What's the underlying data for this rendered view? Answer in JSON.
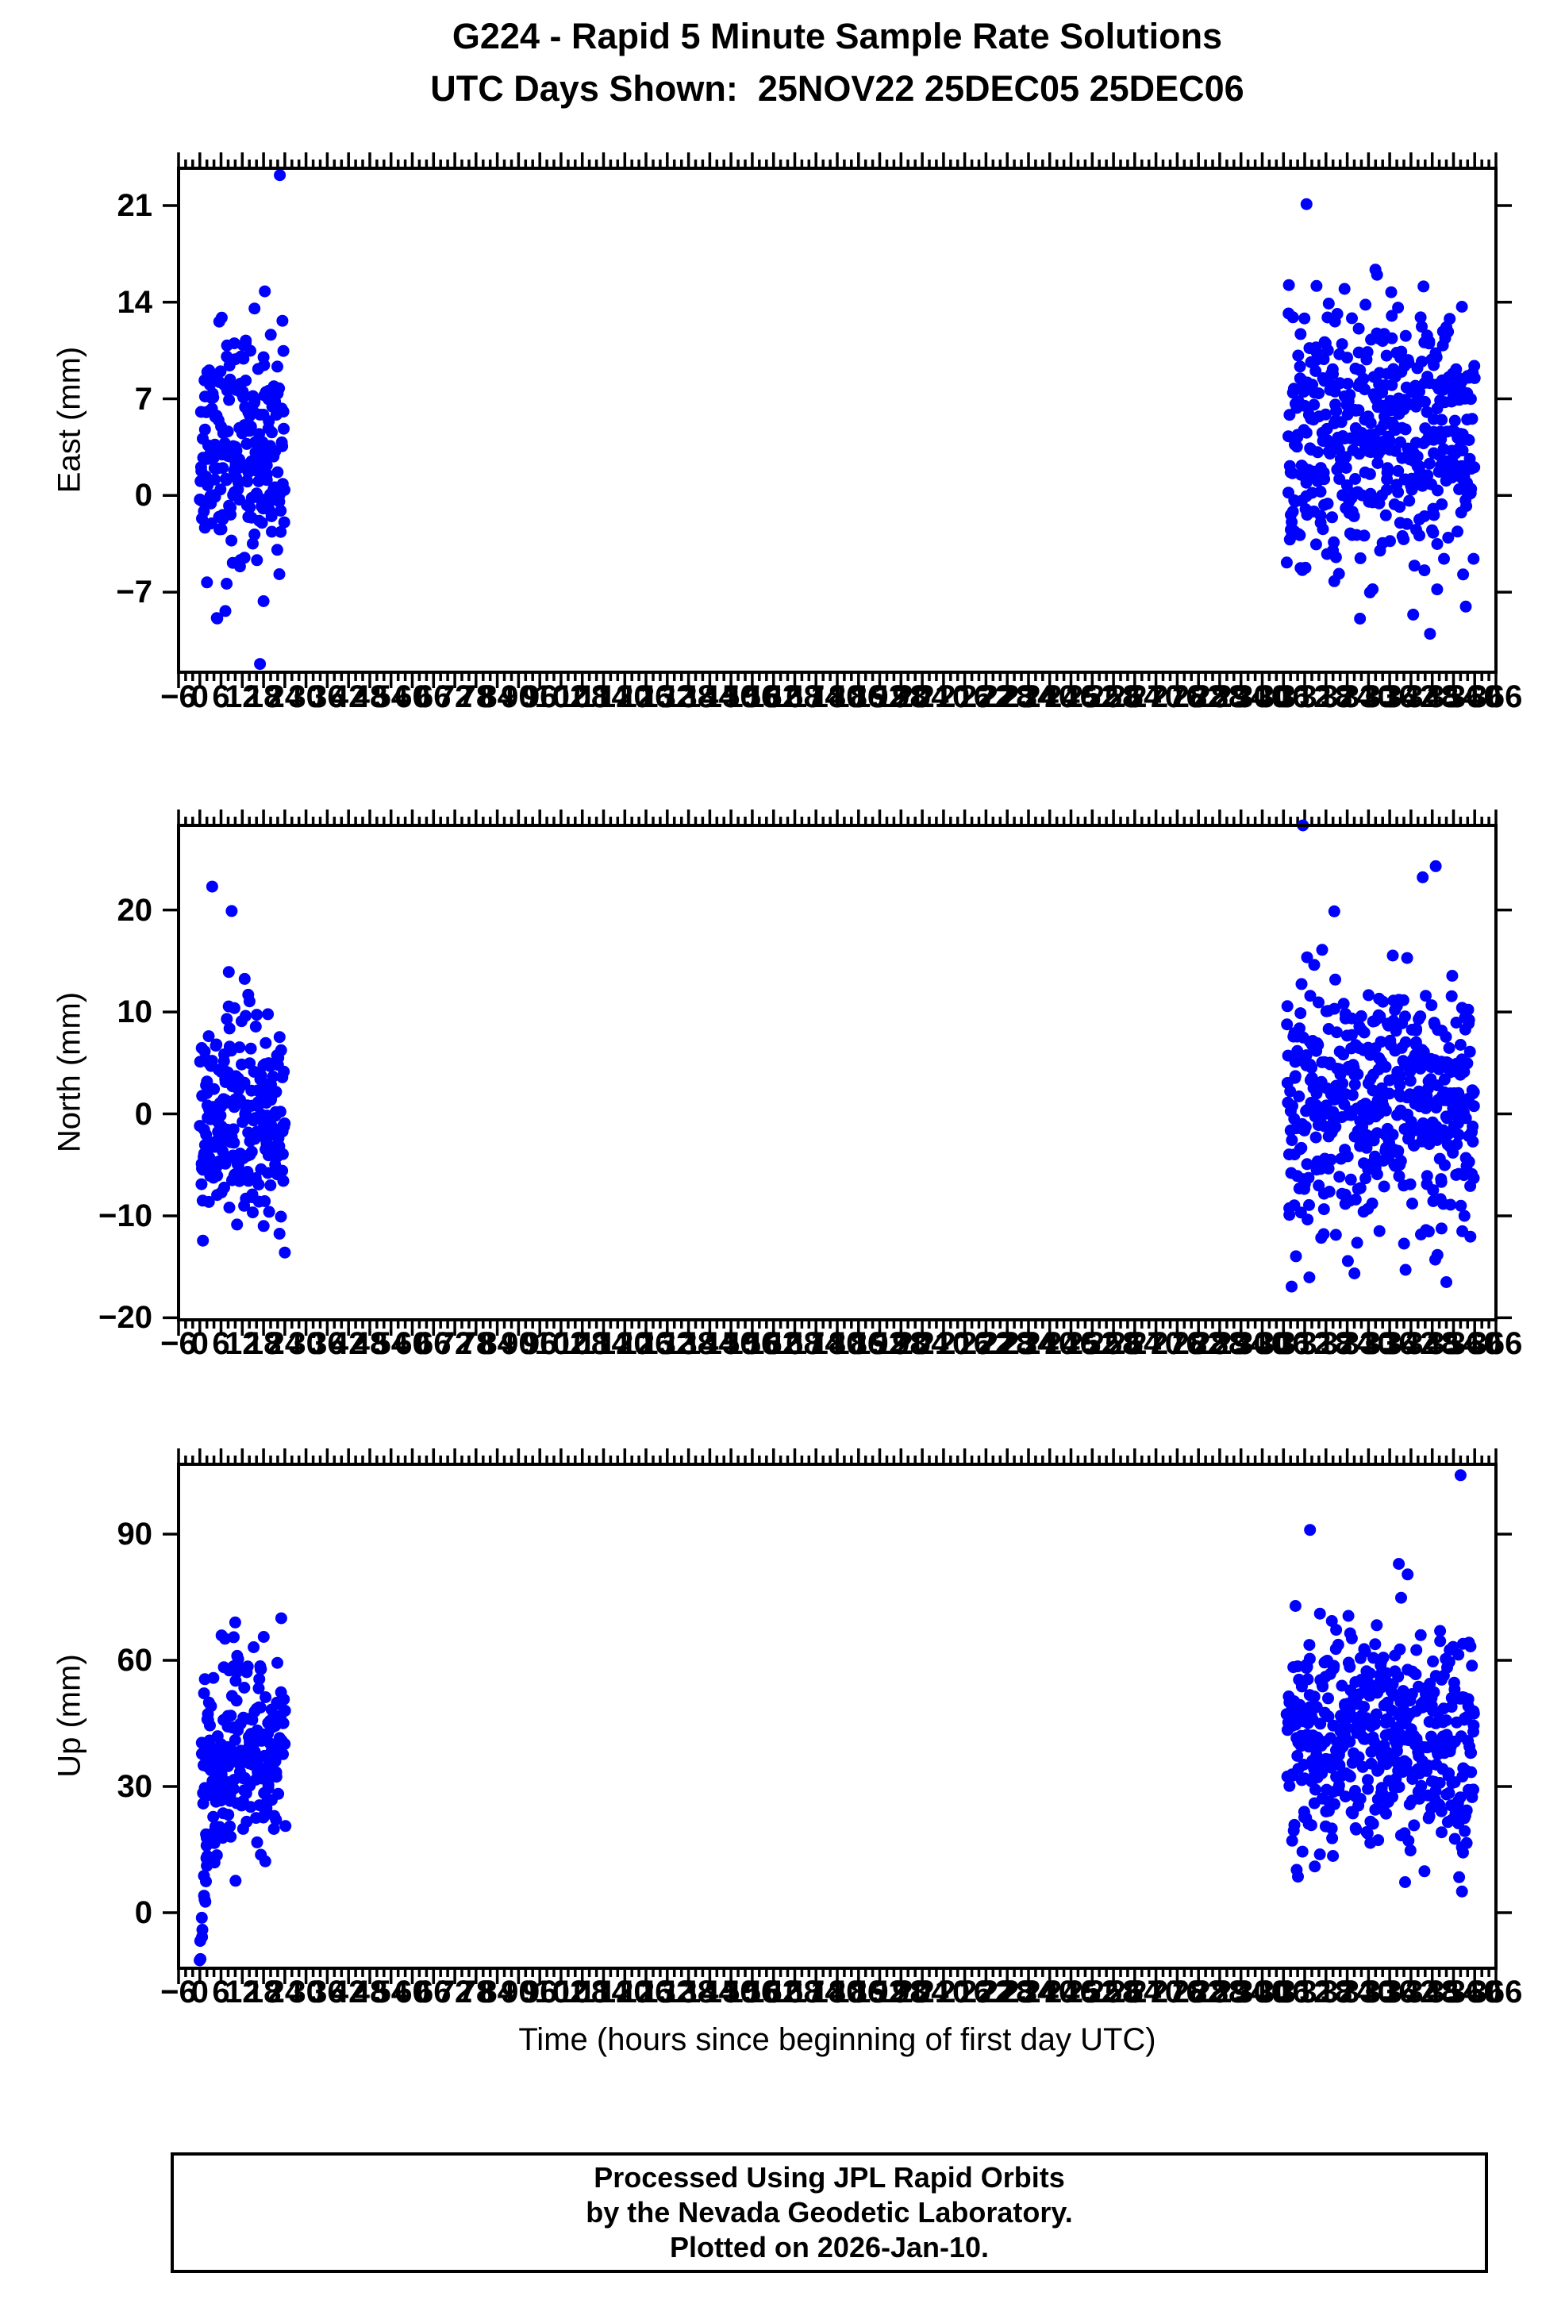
{
  "title": {
    "line1": "G224 - Rapid 5 Minute Sample Rate Solutions",
    "line2": "UTC Days Shown:  25NOV22 25DEC05 25DEC06"
  },
  "footer": {
    "line1": "Processed Using JPL Rapid Orbits",
    "line2": "by the Nevada Geodetic Laboratory.",
    "line3": "Plotted on 2026-Jan-10."
  },
  "marker": {
    "color": "#0000ff",
    "radius": 7.5
  },
  "chart_data": {
    "type": "scatter",
    "title": "G224 - Rapid 5 Minute Sample Rate Solutions",
    "subtitle": "UTC Days Shown:  25NOV22 25DEC05 25DEC06",
    "station": "G224",
    "utc_days_shown": [
      "25NOV22",
      "25DEC05",
      "25DEC06"
    ],
    "legend": "none",
    "grid": false,
    "x_axis": {
      "label": "Time (hours since beginning of first day UTC)",
      "min": -6,
      "max": 366,
      "major_tick_step": 6,
      "minor_tick_step": 2,
      "tick_labels": [
        -6,
        0,
        6,
        12,
        18,
        24,
        30,
        36,
        42,
        48,
        54,
        60,
        66,
        72,
        78,
        84,
        90,
        96,
        102,
        108,
        114,
        120,
        126,
        132,
        138,
        144,
        150,
        156,
        162,
        168,
        174,
        180,
        186,
        192,
        198,
        204,
        210,
        216,
        222,
        228,
        234,
        240,
        246,
        252,
        258,
        264,
        270,
        276,
        282,
        288,
        294,
        300,
        306,
        312,
        318,
        324,
        330,
        336,
        342,
        348,
        354,
        360,
        366
      ]
    },
    "panels": [
      {
        "id": "east",
        "ylabel": "East (mm)",
        "ymin": -12.8,
        "ymax": 23.7,
        "yticks": [
          21,
          14,
          7,
          0,
          -7
        ],
        "clusters": [
          {
            "kind": "gauss",
            "n": 230,
            "hours": [
              0,
              24
            ],
            "mean": 3.3,
            "std": 4.1,
            "vmin": -9.5,
            "vmax": 17.2,
            "seed": 11
          },
          {
            "kind": "gauss",
            "n": 470,
            "hours": [
              307,
              360
            ],
            "mean": 4.3,
            "std": 4.6,
            "vmin": -11.6,
            "vmax": 18.8,
            "seed": 12
          }
        ],
        "outliers": [
          [
            22.6,
            23.2
          ],
          [
            17.0,
            -12.2
          ],
          [
            312.5,
            21.1
          ]
        ]
      },
      {
        "id": "north",
        "ylabel": "North (mm)",
        "ymin": -20.2,
        "ymax": 28.3,
        "yticks": [
          20,
          10,
          0,
          -10,
          -20
        ],
        "clusters": [
          {
            "kind": "gauss",
            "n": 230,
            "hours": [
              0,
              24
            ],
            "mean": 0.2,
            "std": 5.2,
            "vmin": -13.5,
            "vmax": 18.5,
            "seed": 21
          },
          {
            "kind": "gauss",
            "n": 470,
            "hours": [
              307,
              360
            ],
            "mean": 1.3,
            "std": 6.6,
            "vmin": -17.0,
            "vmax": 25.2,
            "seed": 22
          }
        ],
        "outliers": [
          [
            3.5,
            22.3
          ],
          [
            9,
            19.9
          ],
          [
            24,
            -13.6
          ],
          [
            311.5,
            28.3
          ],
          [
            349,
            24.3
          ],
          [
            352,
            -16.5
          ]
        ]
      },
      {
        "id": "up",
        "ylabel": "Up (mm)",
        "ymin": -13.2,
        "ymax": 106.6,
        "yticks": [
          90,
          60,
          30,
          0
        ],
        "clusters": [
          {
            "kind": "ramp",
            "n": 15,
            "hours": [
              0,
              2.3
            ],
            "from": -11.0,
            "to": 16.0,
            "noise": 3.0,
            "seed": 31
          },
          {
            "kind": "gauss",
            "n": 220,
            "hours": [
              0.6,
              24
            ],
            "mean": 38.0,
            "std": 11.5,
            "vmin": 7.0,
            "vmax": 66.0,
            "seed": 32
          },
          {
            "kind": "gauss",
            "n": 470,
            "hours": [
              307,
              360
            ],
            "mean": 40.0,
            "std": 13.5,
            "vmin": -3.5,
            "vmax": 92.0,
            "seed": 33
          }
        ],
        "outliers": [
          [
            313.5,
            91.0
          ],
          [
            356,
            104.0
          ],
          [
            10,
            69.0
          ],
          [
            23,
            70.0
          ]
        ]
      }
    ]
  }
}
